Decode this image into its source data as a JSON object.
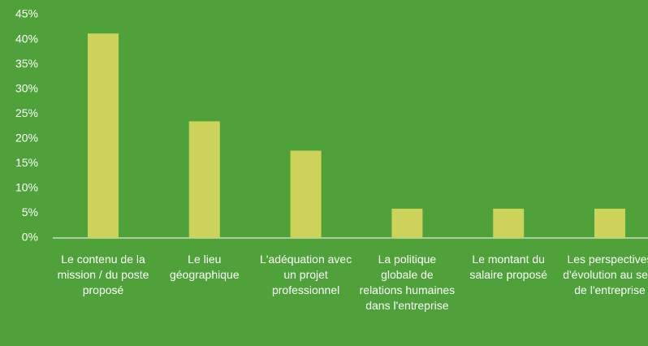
{
  "chart_data": {
    "type": "bar",
    "categories": [
      "Le contenu de la mission / du poste proposé",
      "Le lieu géographique",
      "L'adéquation avec un projet professionnel",
      "La politique globale de relations humaines dans l'entreprise",
      "Le montant du salaire proposé",
      "Les perspectives d'évolution au sein de l'entreprise"
    ],
    "values": [
      41.2,
      23.5,
      17.6,
      5.9,
      5.9,
      5.9
    ],
    "color": "#cdd35a",
    "ylim": [
      0,
      45
    ],
    "yticks": [
      {
        "value": 0,
        "label": "0%"
      },
      {
        "value": 5,
        "label": "5%"
      },
      {
        "value": 10,
        "label": "10%"
      },
      {
        "value": 15,
        "label": "15%"
      },
      {
        "value": 20,
        "label": "20%"
      },
      {
        "value": 25,
        "label": "25%"
      },
      {
        "value": 30,
        "label": "30%"
      },
      {
        "value": 35,
        "label": "35%"
      },
      {
        "value": 40,
        "label": "40%"
      },
      {
        "value": 45,
        "label": "45%"
      }
    ],
    "grid": false
  }
}
